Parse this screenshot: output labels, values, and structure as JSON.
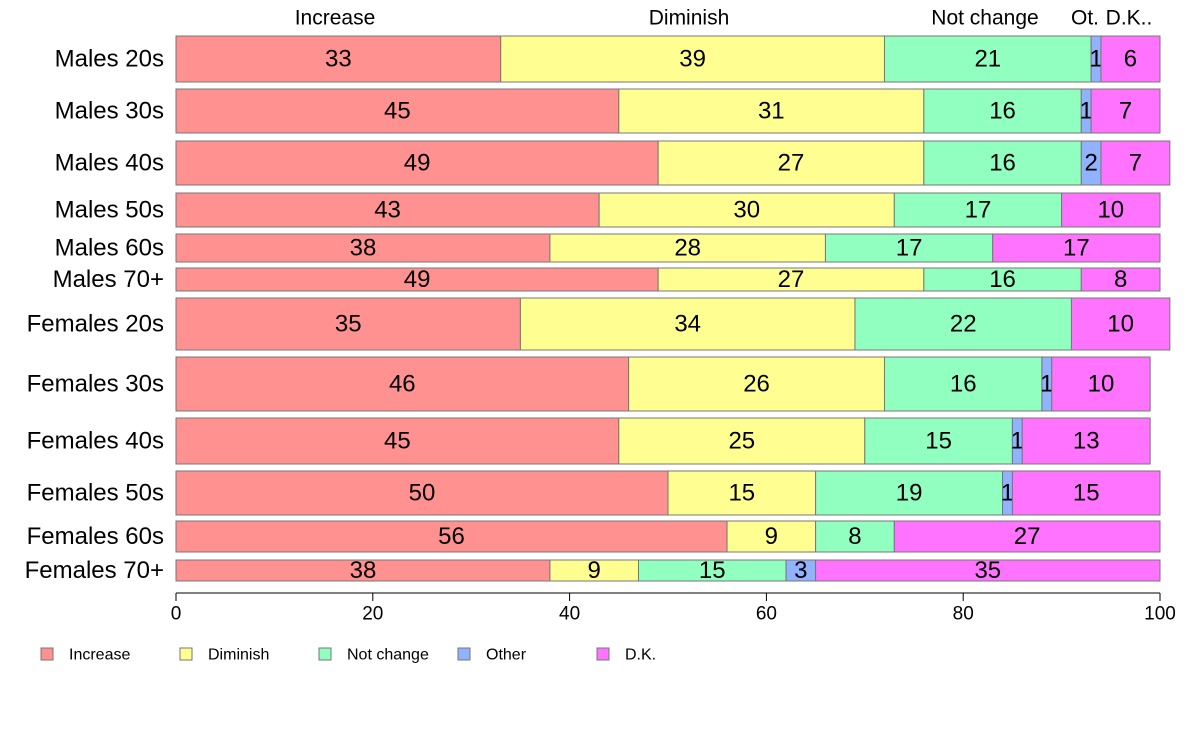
{
  "chart_data": {
    "type": "bar",
    "orientation": "horizontal",
    "stacked": true,
    "categories": [
      "Males 20s",
      "Males 30s",
      "Males 40s",
      "Males 50s",
      "Males 60s",
      "Males 70+",
      "Females 20s",
      "Females 30s",
      "Females 40s",
      "Females 50s",
      "Females 60s",
      "Females 70+"
    ],
    "series": [
      {
        "name": "Increase",
        "color": "#ff9191",
        "values": [
          33,
          45,
          49,
          43,
          38,
          49,
          35,
          46,
          45,
          50,
          56,
          38
        ]
      },
      {
        "name": "Diminish",
        "color": "#ffff91",
        "values": [
          39,
          31,
          27,
          30,
          28,
          27,
          34,
          26,
          25,
          15,
          9,
          9
        ]
      },
      {
        "name": "Not change",
        "color": "#91ffbf",
        "values": [
          21,
          16,
          16,
          17,
          17,
          16,
          22,
          16,
          15,
          19,
          8,
          15
        ]
      },
      {
        "name": "Other",
        "color": "#91b2ff",
        "values": [
          1,
          1,
          2,
          0,
          0,
          0,
          0,
          1,
          1,
          1,
          0,
          3
        ]
      },
      {
        "name": "D.K.",
        "color": "#ff73ff",
        "values": [
          6,
          7,
          7,
          10,
          17,
          8,
          10,
          10,
          13,
          15,
          27,
          35
        ]
      }
    ],
    "top_labels": [
      "Increase",
      "Diminish",
      "Not change",
      "Ot.",
      "D.K.."
    ],
    "xlim": [
      0,
      100
    ],
    "xticks": [
      "0",
      "20",
      "40",
      "60",
      "80",
      "100"
    ],
    "grid": false,
    "legend_position": "bottom-left"
  }
}
